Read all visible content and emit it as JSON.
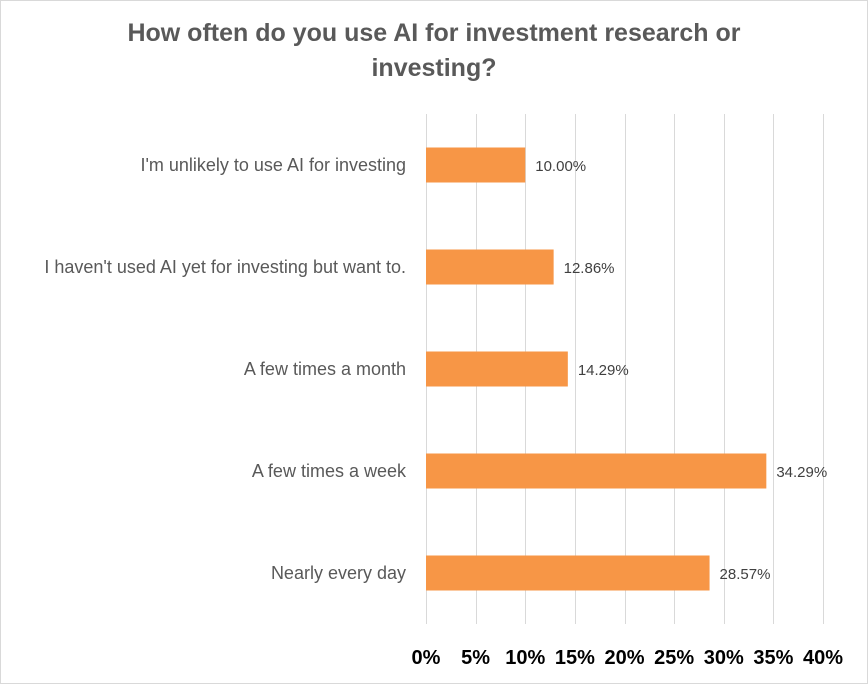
{
  "chart_data": {
    "type": "bar",
    "orientation": "horizontal",
    "title_lines": [
      "How often do you use AI for investment research or",
      "investing?"
    ],
    "categories": [
      "I'm unlikely to use AI for investing",
      "I haven't used AI yet for investing but want to.",
      "A few times a month",
      "A few times a week",
      "Nearly every day"
    ],
    "values": [
      10.0,
      12.86,
      14.29,
      34.29,
      28.57
    ],
    "data_labels": [
      "10.00%",
      "12.86%",
      "14.29%",
      "34.29%",
      "28.57%"
    ],
    "x_ticks": [
      0,
      5,
      10,
      15,
      20,
      25,
      30,
      35,
      40
    ],
    "x_tick_labels": [
      "0%",
      "5%",
      "10%",
      "15%",
      "20%",
      "25%",
      "30%",
      "35%",
      "40%"
    ],
    "xlim": [
      0,
      40
    ],
    "grid": "vertical",
    "bar_color": "#f79646",
    "grid_color": "#d9d9d9",
    "text_color": "#595959"
  }
}
